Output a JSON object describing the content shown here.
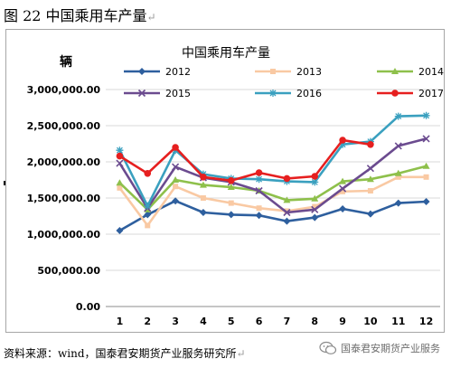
{
  "caption": {
    "text": "图 22 中国乘用车产量",
    "mark": "↵"
  },
  "source": {
    "text": "资料来源：wind，国泰君安期货产业服务研究所",
    "mark": "↵"
  },
  "watermark": {
    "text": "国泰君安期货产业服务",
    "icon": "wechat-icon"
  },
  "chart_data": {
    "type": "line",
    "title": "中国乘用车产量",
    "ylabel": "辆",
    "xlabel": "",
    "categories": [
      "1",
      "2",
      "3",
      "4",
      "5",
      "6",
      "7",
      "8",
      "9",
      "10",
      "11",
      "12"
    ],
    "ylim": [
      0,
      3000000
    ],
    "yticks": [
      "0.00",
      "500,000.00",
      "1,000,000.00",
      "1,500,000.00",
      "2,000,000.00",
      "2,500,000.00",
      "3,000,000.00"
    ],
    "grid": true,
    "legend_position": "top",
    "series": [
      {
        "name": "2012",
        "color": "#2e5f9e",
        "marker": "diamond",
        "values": [
          1050000,
          1270000,
          1460000,
          1300000,
          1270000,
          1260000,
          1180000,
          1230000,
          1350000,
          1280000,
          1430000,
          1450000
        ]
      },
      {
        "name": "2013",
        "color": "#f9c9a3",
        "marker": "square",
        "values": [
          1640000,
          1120000,
          1660000,
          1500000,
          1430000,
          1360000,
          1320000,
          1380000,
          1590000,
          1600000,
          1790000,
          1790000
        ]
      },
      {
        "name": "2014",
        "color": "#8ec04b",
        "marker": "triangle",
        "values": [
          1710000,
          1340000,
          1750000,
          1680000,
          1650000,
          1600000,
          1470000,
          1490000,
          1730000,
          1760000,
          1840000,
          1940000
        ]
      },
      {
        "name": "2015",
        "color": "#6b4b8f",
        "marker": "x",
        "values": [
          1980000,
          1360000,
          1930000,
          1780000,
          1720000,
          1600000,
          1300000,
          1340000,
          1630000,
          1910000,
          2220000,
          2320000
        ]
      },
      {
        "name": "2016",
        "color": "#3aa0bf",
        "marker": "star",
        "values": [
          2160000,
          1390000,
          2160000,
          1830000,
          1770000,
          1760000,
          1730000,
          1720000,
          2240000,
          2280000,
          2630000,
          2640000
        ]
      },
      {
        "name": "2017",
        "color": "#e61f1f",
        "marker": "circle",
        "values": [
          2080000,
          1840000,
          2200000,
          1790000,
          1740000,
          1850000,
          1770000,
          1800000,
          2300000,
          2240000,
          null,
          null
        ]
      }
    ]
  }
}
